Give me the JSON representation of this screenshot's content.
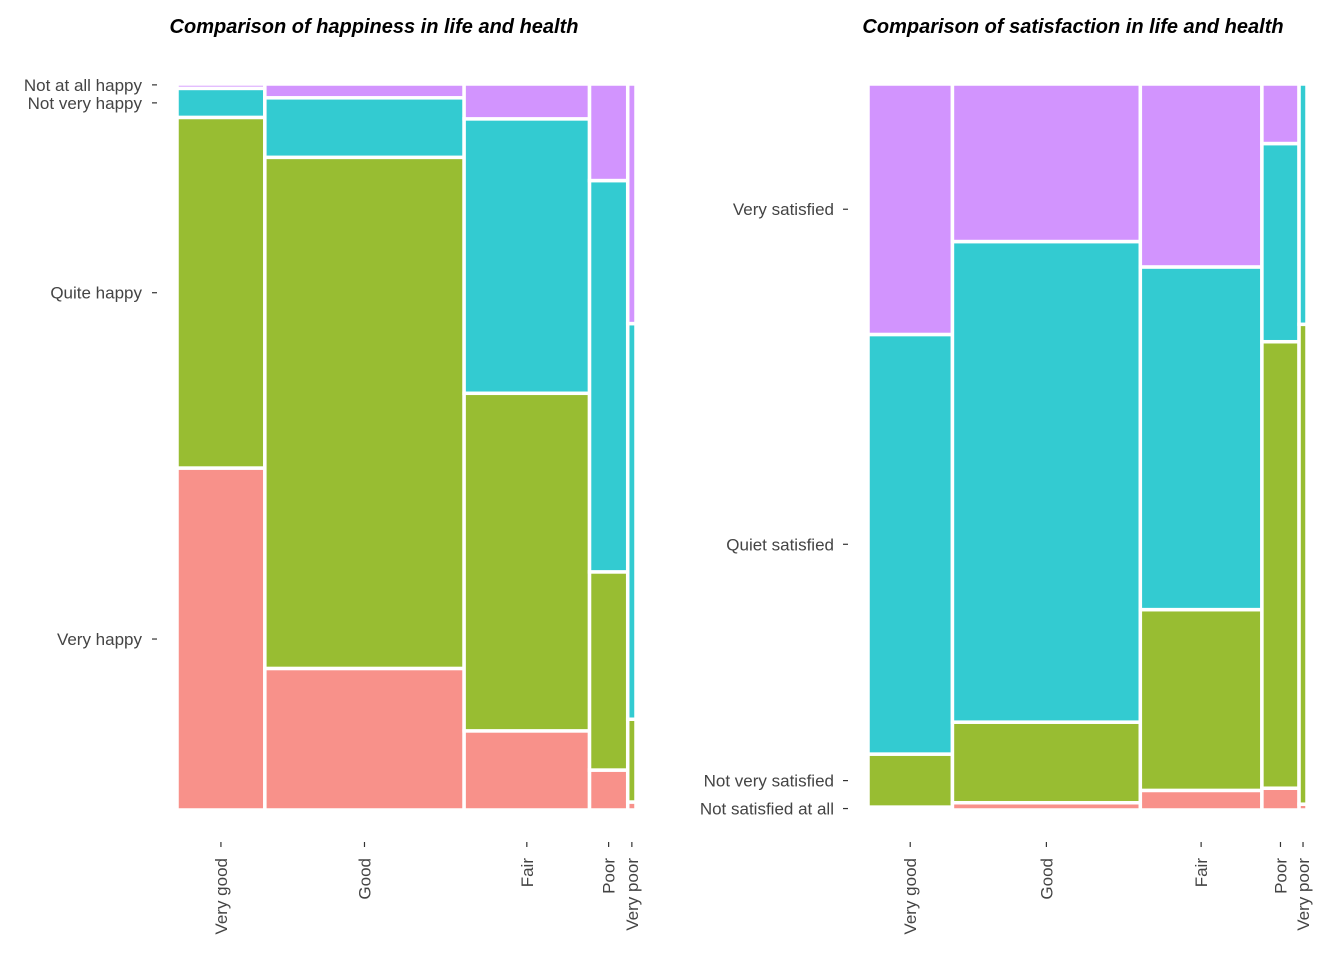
{
  "chart_data": [
    {
      "type": "mosaic",
      "title": "Comparison of happiness in life and health",
      "x_categories": [
        "Very good",
        "Good",
        "Fair",
        "Poor",
        "Very poor"
      ],
      "x_proportions": [
        0.138,
        0.313,
        0.197,
        0.06,
        0.013
      ],
      "y_categories_bottom_to_top": [
        "Very happy",
        "Quite happy",
        "Not very happy",
        "Not at all happy"
      ],
      "y_tick_labels": [
        "Not at all happy",
        "Not very happy",
        "Quite happy",
        "Very happy"
      ],
      "colors": [
        "#F8918A",
        "#98BD32",
        "#33CBD1",
        "#D294FE"
      ],
      "conditional_proportions": [
        [
          0.471,
          0.483,
          0.04,
          0.006
        ],
        [
          0.195,
          0.704,
          0.082,
          0.019
        ],
        [
          0.109,
          0.465,
          0.378,
          0.048
        ],
        [
          0.055,
          0.273,
          0.539,
          0.133
        ],
        [
          0.011,
          0.114,
          0.545,
          0.33
        ]
      ]
    },
    {
      "type": "mosaic",
      "title": "Comparison of satisfaction in life and health",
      "x_categories": [
        "Very good",
        "Good",
        "Fair",
        "Poor",
        "Very poor"
      ],
      "x_proportions": [
        0.191,
        0.425,
        0.275,
        0.084,
        0.018
      ],
      "y_categories_bottom_to_top": [
        "Not satisfied at all",
        "Not very satisfied",
        "Quiet satisfied",
        "Very satisfied"
      ],
      "y_tick_labels": [
        "Very satisfied",
        "Quiet satisfied",
        "Not very satisfied",
        "Not satisfied at all"
      ],
      "colors": [
        "#F8918A",
        "#98BD32",
        "#33CBD1",
        "#D294FE"
      ],
      "conditional_proportions": [
        [
          0.004,
          0.073,
          0.578,
          0.345
        ],
        [
          0.01,
          0.111,
          0.662,
          0.217
        ],
        [
          0.027,
          0.249,
          0.472,
          0.252
        ],
        [
          0.03,
          0.615,
          0.273,
          0.082
        ],
        [
          0.008,
          0.661,
          0.331,
          0.0
        ]
      ]
    }
  ]
}
